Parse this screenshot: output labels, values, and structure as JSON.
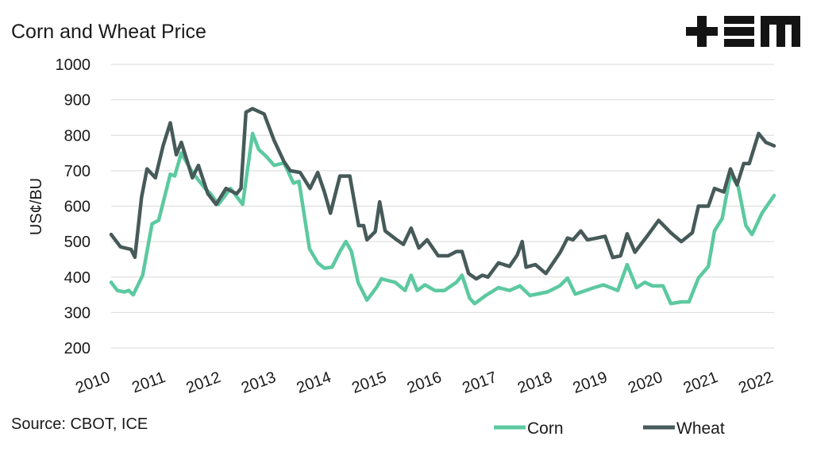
{
  "chart_data": {
    "type": "line",
    "title": "Corn and Wheat Price",
    "ylabel": "US¢/BU",
    "source": "Source: CBOT, ICE",
    "xlim": [
      2010,
      2022
    ],
    "xticks": [
      2010,
      2011,
      2012,
      2013,
      2014,
      2015,
      2016,
      2017,
      2018,
      2019,
      2020,
      2021,
      2022
    ],
    "ylim": [
      200,
      1000
    ],
    "yticks": [
      200,
      300,
      400,
      500,
      600,
      700,
      800,
      900,
      1000
    ],
    "grid": true,
    "legend": "bottom-right",
    "series": [
      {
        "name": "Corn",
        "color": "#5cc9a0",
        "x": [
          2010,
          2010.11,
          2010.24,
          2010.32,
          2010.4,
          2010.57,
          2010.74,
          2010.86,
          2011.07,
          2011.15,
          2011.27,
          2011.47,
          2011.7,
          2011.8,
          2011.94,
          2012.16,
          2012.38,
          2012.56,
          2012.67,
          2012.81,
          2012.95,
          2013.13,
          2013.3,
          2013.4,
          2013.59,
          2013.74,
          2013.86,
          2014.0,
          2014.14,
          2014.25,
          2014.35,
          2014.47,
          2014.63,
          2014.81,
          2014.89,
          2015.14,
          2015.32,
          2015.43,
          2015.54,
          2015.68,
          2015.86,
          2016.03,
          2016.25,
          2016.35,
          2016.49,
          2016.58,
          2016.78,
          2017.01,
          2017.21,
          2017.4,
          2017.58,
          2017.9,
          2018.12,
          2018.26,
          2018.4,
          2018.59,
          2018.74,
          2018.91,
          2019.17,
          2019.34,
          2019.51,
          2019.66,
          2019.8,
          2019.99,
          2020.13,
          2020.32,
          2020.46,
          2020.63,
          2020.81,
          2020.92,
          2021.06,
          2021.21,
          2021.35,
          2021.49,
          2021.6,
          2021.78,
          2022.0
        ],
        "values": [
          385,
          362,
          358,
          362,
          350,
          405,
          550,
          560,
          690,
          685,
          750,
          695,
          650,
          635,
          605,
          650,
          605,
          805,
          760,
          740,
          715,
          722,
          665,
          670,
          480,
          440,
          425,
          428,
          472,
          500,
          472,
          385,
          335,
          372,
          395,
          385,
          362,
          405,
          362,
          378,
          362,
          362,
          385,
          405,
          340,
          325,
          348,
          370,
          362,
          375,
          348,
          358,
          375,
          397,
          352,
          362,
          370,
          378,
          362,
          435,
          370,
          385,
          375,
          375,
          325,
          330,
          330,
          397,
          430,
          530,
          565,
          690,
          655,
          545,
          520,
          580,
          630
        ]
      },
      {
        "name": "Wheat",
        "color": "#475a5a",
        "x": [
          2010,
          2010.17,
          2010.36,
          2010.43,
          2010.55,
          2010.65,
          2010.8,
          2010.94,
          2011.07,
          2011.18,
          2011.27,
          2011.47,
          2011.58,
          2011.75,
          2011.9,
          2012.08,
          2012.27,
          2012.35,
          2012.44,
          2012.56,
          2012.77,
          2012.95,
          2013.13,
          2013.24,
          2013.42,
          2013.6,
          2013.74,
          2013.86,
          2013.97,
          2014.14,
          2014.32,
          2014.48,
          2014.57,
          2014.63,
          2014.78,
          2014.86,
          2014.96,
          2015.17,
          2015.29,
          2015.43,
          2015.57,
          2015.72,
          2015.92,
          2016.1,
          2016.25,
          2016.35,
          2016.47,
          2016.61,
          2016.72,
          2016.82,
          2017.01,
          2017.21,
          2017.35,
          2017.44,
          2017.51,
          2017.68,
          2017.87,
          2018.13,
          2018.26,
          2018.36,
          2018.5,
          2018.62,
          2018.79,
          2018.94,
          2019.08,
          2019.22,
          2019.34,
          2019.48,
          2019.7,
          2019.91,
          2020.13,
          2020.32,
          2020.52,
          2020.63,
          2020.81,
          2020.92,
          2021.09,
          2021.21,
          2021.33,
          2021.45,
          2021.55,
          2021.72,
          2021.85,
          2022.0
        ],
        "values": [
          520,
          485,
          478,
          456,
          625,
          705,
          680,
          770,
          835,
          745,
          780,
          680,
          715,
          635,
          605,
          650,
          635,
          650,
          865,
          875,
          860,
          785,
          725,
          700,
          695,
          650,
          695,
          640,
          580,
          685,
          685,
          545,
          545,
          505,
          528,
          612,
          530,
          505,
          492,
          538,
          482,
          505,
          460,
          460,
          472,
          472,
          410,
          395,
          405,
          400,
          440,
          430,
          462,
          500,
          428,
          435,
          410,
          470,
          510,
          505,
          530,
          505,
          510,
          515,
          455,
          460,
          522,
          470,
          515,
          560,
          525,
          500,
          525,
          600,
          600,
          650,
          640,
          705,
          660,
          720,
          720,
          805,
          780,
          770
        ]
      }
    ]
  }
}
